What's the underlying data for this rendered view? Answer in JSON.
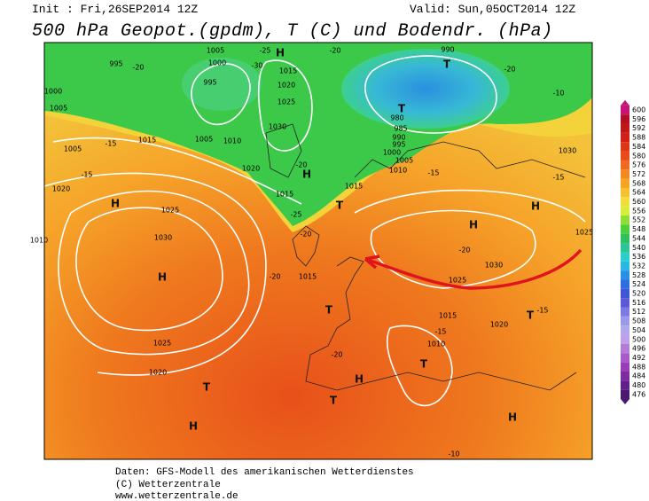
{
  "header": {
    "init": "Init : Fri,26SEP2014 12Z",
    "valid": "Valid: Sun,05OCT2014 12Z",
    "title": "500 hPa Geopot.(gpdm), T (C) und Bodendr. (hPa)"
  },
  "colorbar": {
    "labels": [
      600,
      596,
      592,
      588,
      584,
      580,
      576,
      572,
      568,
      564,
      560,
      556,
      552,
      548,
      544,
      540,
      536,
      532,
      528,
      524,
      520,
      516,
      512,
      508,
      504,
      500,
      496,
      492,
      488,
      484,
      480,
      476
    ]
  },
  "map": {
    "pressure_labels": [
      "995",
      "1005",
      "1000",
      "995",
      "1000",
      "1005",
      "1005",
      "1015",
      "1005",
      "1010",
      "1015",
      "1020",
      "1025",
      "1030",
      "1020",
      "1015",
      "1020",
      "1025",
      "1030",
      "1010",
      "1025",
      "1020",
      "1015",
      "1015",
      "990",
      "980",
      "985",
      "990",
      "995",
      "1000",
      "1005",
      "1010",
      "1030",
      "1025",
      "1030",
      "1025",
      "1015",
      "1020",
      "1010"
    ],
    "temperature_labels": [
      "-20",
      "-25",
      "-30",
      "-20",
      "-15",
      "-15",
      "-20",
      "-25",
      "-20",
      "-20",
      "-15",
      "-20",
      "-15",
      "-15",
      "-20",
      "-10",
      "-15",
      "-20",
      "-10"
    ],
    "centers": [
      "H",
      "H",
      "H",
      "H",
      "H",
      "H",
      "H",
      "H",
      "H",
      "T",
      "T",
      "T",
      "T",
      "T",
      "T",
      "T",
      "T"
    ]
  },
  "footer": {
    "lines": [
      "Daten: GFS-Modell des amerikanischen Wetterdienstes",
      "(C) Wetterzentrale",
      "www.wetterzentrale.de"
    ]
  }
}
